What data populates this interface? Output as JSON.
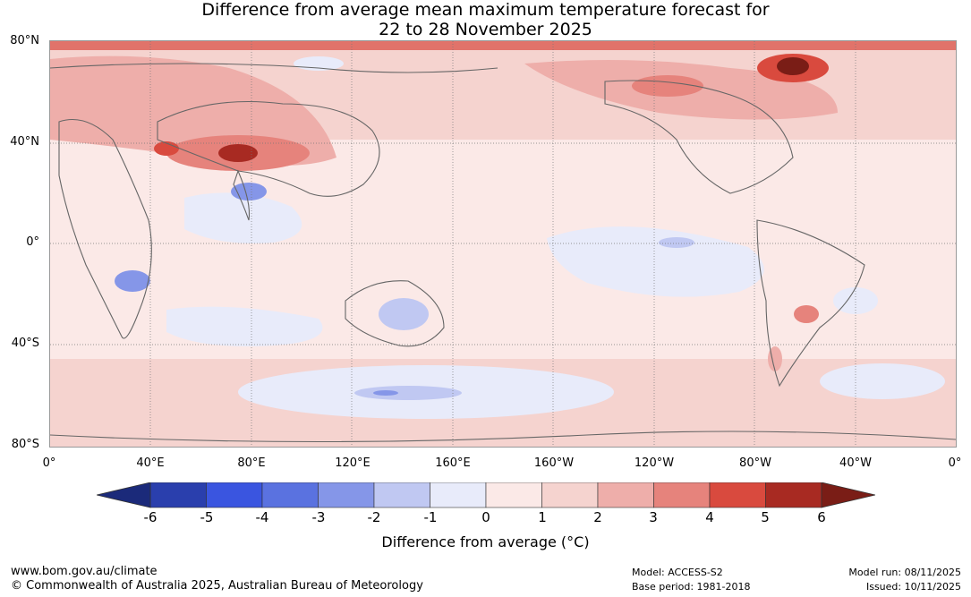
{
  "title": {
    "line1": "Difference from average mean maximum temperature forecast for",
    "line2": "22 to 28 November 2025"
  },
  "map": {
    "lat_labels": [
      "80°N",
      "40°N",
      "0°",
      "40°S",
      "80°S"
    ],
    "lon_labels": [
      "0°",
      "40°E",
      "80°E",
      "120°E",
      "160°E",
      "160°W",
      "120°W",
      "80°W",
      "40°W",
      "0°"
    ],
    "background_color": "#fbe9e7"
  },
  "colorbar": {
    "tick_labels": [
      "-6",
      "-5",
      "-4",
      "-3",
      "-2",
      "-1",
      "0",
      "1",
      "2",
      "3",
      "4",
      "5",
      "6"
    ],
    "under_color": "#1b2a7a",
    "over_color": "#7a1d16",
    "colors": [
      "#2a3fad",
      "#3a55e0",
      "#5a72e0",
      "#8596e8",
      "#c0c8f2",
      "#e8ebfa",
      "#fbe9e7",
      "#f5d3cf",
      "#eeaeaa",
      "#e6837c",
      "#d94a3e",
      "#a82a22"
    ],
    "label": "Difference from average (°C)"
  },
  "footer": {
    "website": "www.bom.gov.au/climate",
    "copyright": "© Commonwealth of Australia 2025, Australian Bureau of Meteorology",
    "model": "Model: ACCESS-S2",
    "base_period": "Base period: 1981-2018",
    "model_run": "Model run: 08/11/2025",
    "issued": "Issued: 10/11/2025"
  }
}
